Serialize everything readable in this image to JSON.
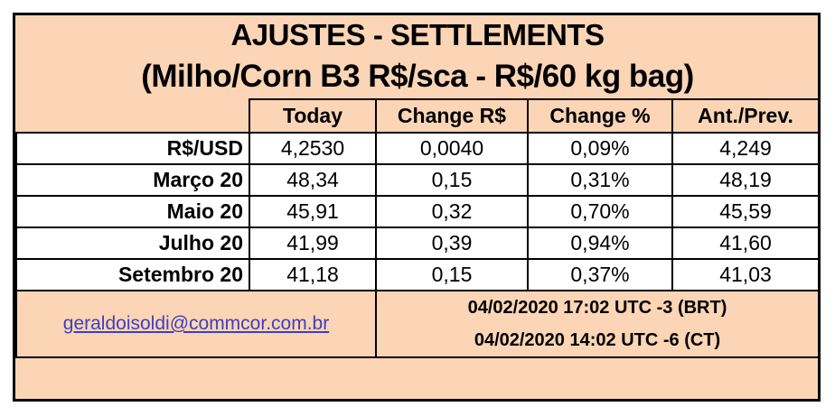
{
  "title": "AJUSTES - SETTLEMENTS",
  "subtitle": "(Milho/Corn B3 R$/sca - R$/60 kg bag)",
  "columns": [
    "Today",
    "Change R$",
    "Change %",
    "Ant./Prev."
  ],
  "rows": [
    {
      "label": "R$/USD",
      "today": "4,2530",
      "change": "0,0040",
      "pct": "0,09%",
      "prev": "4,249"
    },
    {
      "label": "Março 20",
      "today": "48,34",
      "change": "0,15",
      "pct": "0,31%",
      "prev": "48,19"
    },
    {
      "label": "Maio 20",
      "today": "45,91",
      "change": "0,32",
      "pct": "0,70%",
      "prev": "45,59"
    },
    {
      "label": "Julho 20",
      "today": "41,99",
      "change": "0,39",
      "pct": "0,94%",
      "prev": "41,60"
    },
    {
      "label": "Setembro 20",
      "today": "41,18",
      "change": "0,15",
      "pct": "0,37%",
      "prev": "41,03"
    }
  ],
  "footer": {
    "email": "geraldoisoldi@commcor.com.br",
    "time_brt": "04/02/2020 17:02 UTC -3 (BRT)",
    "time_ct": "04/02/2020 14:02 UTC -6 (CT)"
  },
  "colors": {
    "background": "#fbd5b5",
    "cell": "#ffffff",
    "link": "#3f3fbf"
  }
}
